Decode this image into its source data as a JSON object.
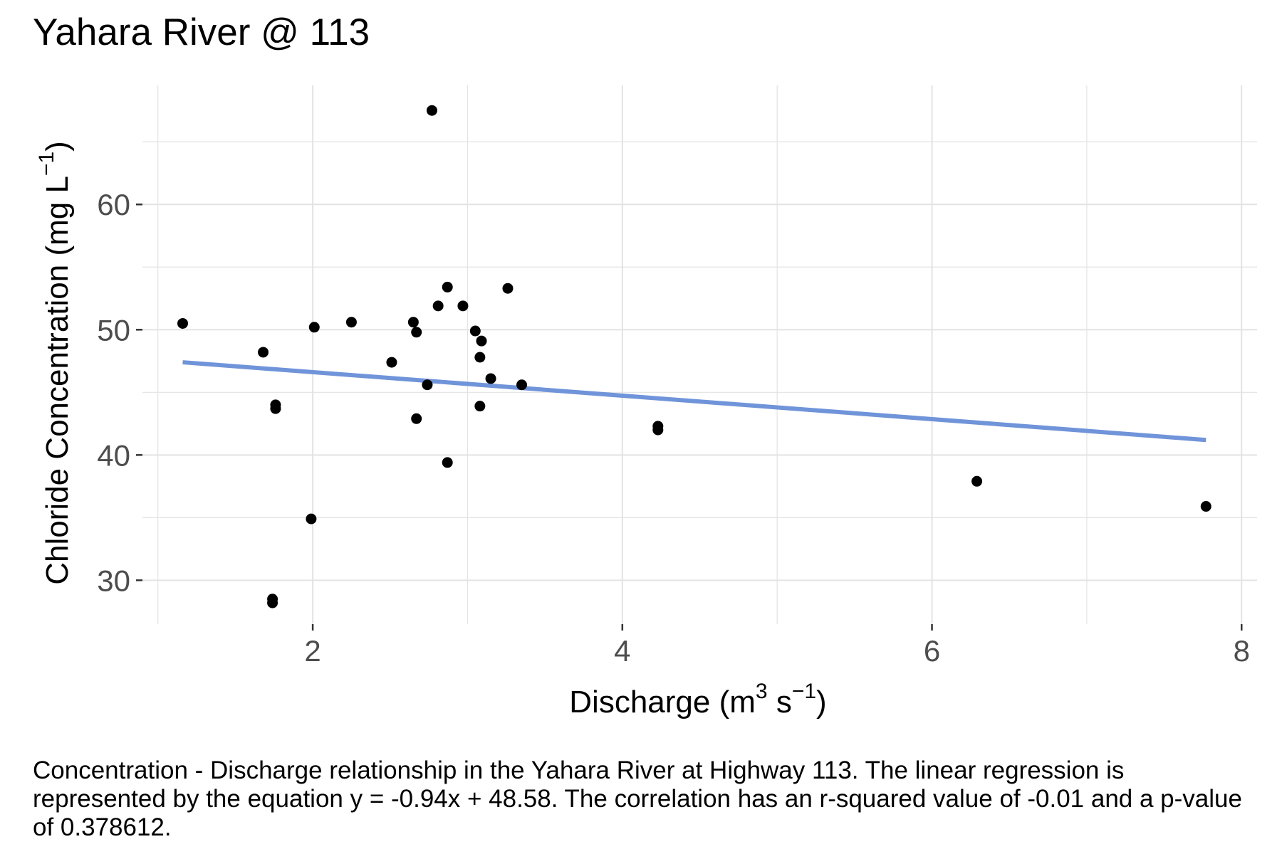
{
  "chart_data": {
    "type": "scatter",
    "title": "Yahara River @ 113",
    "xlabel": {
      "base": "Discharge (m",
      "sup1": "3",
      "mid": " s",
      "sup2": "−1",
      "end": ")"
    },
    "ylabel": {
      "base": "Chloride Concentration (mg L",
      "sup": "−1",
      "end": ")"
    },
    "xlim": [
      0.9,
      8.1
    ],
    "ylim": [
      26.5,
      69.5
    ],
    "x_major_ticks": [
      2,
      4,
      6,
      8
    ],
    "x_minor_ticks": [
      1,
      3,
      5,
      7
    ],
    "y_major_ticks": [
      30,
      40,
      50,
      60
    ],
    "y_minor_ticks": [
      35,
      45,
      55,
      65
    ],
    "x_tick_labels": [
      "2",
      "4",
      "6",
      "8"
    ],
    "y_tick_labels": [
      "30",
      "40",
      "50",
      "60"
    ],
    "grid": true,
    "points": [
      {
        "x": 1.16,
        "y": 50.5
      },
      {
        "x": 1.68,
        "y": 48.2
      },
      {
        "x": 1.76,
        "y": 44.0
      },
      {
        "x": 1.76,
        "y": 43.7
      },
      {
        "x": 1.74,
        "y": 28.5
      },
      {
        "x": 1.74,
        "y": 28.2
      },
      {
        "x": 1.99,
        "y": 34.9
      },
      {
        "x": 2.01,
        "y": 50.2
      },
      {
        "x": 2.25,
        "y": 50.6
      },
      {
        "x": 2.51,
        "y": 47.4
      },
      {
        "x": 2.65,
        "y": 50.6
      },
      {
        "x": 2.67,
        "y": 49.8
      },
      {
        "x": 2.67,
        "y": 42.9
      },
      {
        "x": 2.74,
        "y": 45.6
      },
      {
        "x": 2.77,
        "y": 67.5
      },
      {
        "x": 2.81,
        "y": 51.9
      },
      {
        "x": 2.87,
        "y": 53.4
      },
      {
        "x": 2.87,
        "y": 39.4
      },
      {
        "x": 2.97,
        "y": 51.9
      },
      {
        "x": 3.05,
        "y": 49.9
      },
      {
        "x": 3.09,
        "y": 49.1
      },
      {
        "x": 3.08,
        "y": 47.8
      },
      {
        "x": 3.08,
        "y": 43.9
      },
      {
        "x": 3.15,
        "y": 46.1
      },
      {
        "x": 3.26,
        "y": 53.3
      },
      {
        "x": 3.35,
        "y": 45.6
      },
      {
        "x": 4.23,
        "y": 42.3
      },
      {
        "x": 4.23,
        "y": 42.0
      },
      {
        "x": 6.29,
        "y": 37.9
      },
      {
        "x": 7.77,
        "y": 35.9
      }
    ],
    "regression_line": {
      "x": [
        1.16,
        7.77
      ],
      "y": [
        47.4,
        41.2
      ]
    },
    "point_color": "#000000",
    "line_color": "#7094d9",
    "grid_color": "#e3e3e3"
  },
  "caption": "Concentration - Discharge relationship in the Yahara River at Highway 113. The linear regression is represented by the equation y = -0.94x + 48.58. The correlation has an r-squared value of -0.01 and a p-value of 0.378612."
}
